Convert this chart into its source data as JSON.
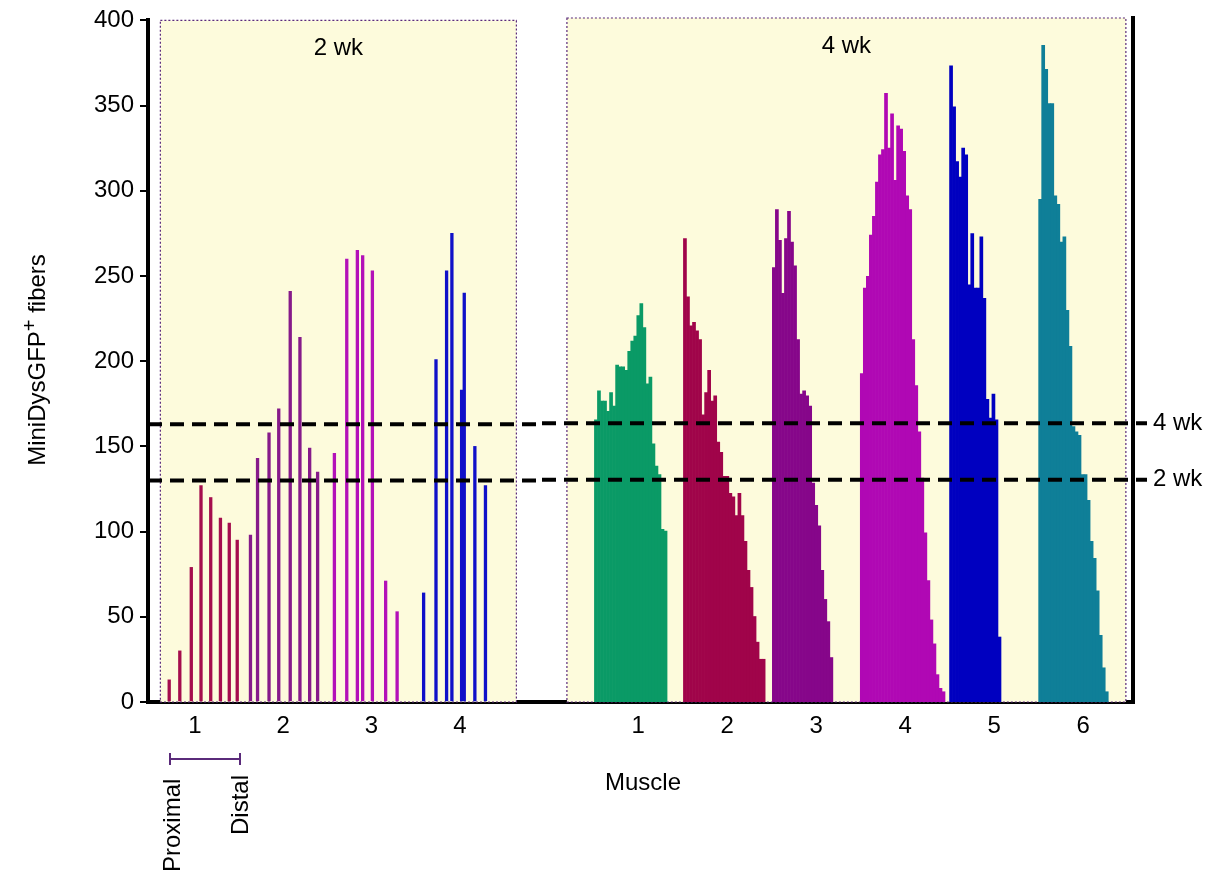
{
  "chart_data": [
    {
      "type": "bar",
      "ylabel": "MiniDysGFP$^{+}$ fibers",
      "xlim": [
        0.47,
        4.93
      ],
      "xticks": [
        1,
        2,
        3,
        4
      ],
      "ylim": [
        0,
        400
      ],
      "yticks": [
        0,
        50,
        100,
        150,
        200,
        250,
        300,
        350,
        400
      ],
      "grid": false,
      "legend": false,
      "bands": [
        {
          "axis": "x",
          "from": 0.61,
          "to": 4.64,
          "label": "2 wk",
          "color": "#fdfbdc"
        }
      ],
      "ref_lines": [
        {
          "axis": "y",
          "value": 163,
          "line_style": "dashed"
        },
        {
          "axis": "y",
          "value": 130,
          "line_style": "dashed"
        }
      ],
      "annotations": [
        "Proximal",
        "Distal"
      ],
      "series": [
        {
          "color": "#a50d4d",
          "x": [
            0.71,
            0.83,
            0.96,
            1.07,
            1.18,
            1.29,
            1.39,
            1.48
          ],
          "values": [
            13,
            30,
            79,
            127,
            120,
            108,
            105,
            95
          ]
        },
        {
          "color": "#861a8a",
          "x": [
            1.63,
            1.71,
            1.84,
            1.95,
            2.08,
            2.19,
            2.3,
            2.39
          ],
          "values": [
            98,
            143,
            158,
            172,
            241,
            214,
            149,
            135
          ]
        },
        {
          "color": "#b311b8",
          "x": [
            2.58,
            2.72,
            2.84,
            2.9,
            3.01,
            3.16,
            3.29
          ],
          "values": [
            146,
            260,
            265,
            262,
            253,
            71,
            53
          ]
        },
        {
          "color": "#1010c8",
          "x": [
            3.59,
            3.73,
            3.85,
            3.91,
            4.02,
            4.05,
            4.17,
            4.29
          ],
          "values": [
            64,
            201,
            253,
            275,
            183,
            240,
            150,
            127
          ]
        }
      ]
    },
    {
      "type": "bar",
      "xlabel": "Muscle",
      "xlim": [
        -0.08,
        6.56
      ],
      "xticks": [
        1,
        2,
        3,
        4,
        5,
        6
      ],
      "ylim": [
        0,
        400
      ],
      "yticks": [
        0,
        50,
        100,
        150,
        200,
        250,
        300,
        350,
        400
      ],
      "tick_labels": "x",
      "grid": false,
      "legend": false,
      "bands": [
        {
          "axis": "x",
          "from": 0.2,
          "to": 6.48,
          "label": "4 wk",
          "color": "#fdfbdc"
        }
      ],
      "ref_lines": [
        {
          "axis": "y",
          "value": 163,
          "label": "4 wk",
          "line_style": "dashed"
        },
        {
          "axis": "y",
          "value": 130,
          "label": "2 wk",
          "line_style": "dashed"
        }
      ],
      "series": [
        {
          "color": "#0a9a66",
          "x": [
            0.526,
            0.56,
            0.594,
            0.628,
            0.662,
            0.696,
            0.73,
            0.764,
            0.798,
            0.832,
            0.866,
            0.9,
            0.934,
            0.968,
            1.002,
            1.036,
            1.07,
            1.104,
            1.138,
            1.172,
            1.206,
            1.24,
            1.274,
            1.308
          ],
          "values": [
            165,
            182,
            176,
            176,
            170,
            181,
            173,
            197,
            196,
            196,
            194,
            205,
            211,
            214,
            226,
            233,
            219,
            186,
            190,
            151,
            138,
            133,
            101,
            100
          ]
        },
        {
          "color": "#a0044a",
          "x": [
            1.526,
            1.56,
            1.594,
            1.628,
            1.662,
            1.696,
            1.73,
            1.764,
            1.798,
            1.832,
            1.866,
            1.9,
            1.934,
            1.968,
            2.002,
            2.036,
            2.07,
            2.104,
            2.138,
            2.172,
            2.206,
            2.24,
            2.274,
            2.308,
            2.342,
            2.376,
            2.41
          ],
          "values": [
            271,
            237,
            220,
            222,
            217,
            212,
            168,
            181,
            194,
            176,
            179,
            152,
            146,
            132,
            132,
            122,
            120,
            109,
            122,
            109,
            94,
            77,
            67,
            50,
            35,
            25,
            25
          ]
        },
        {
          "color": "#86068a",
          "x": [
            2.525,
            2.559,
            2.593,
            2.627,
            2.661,
            2.695,
            2.729,
            2.763,
            2.797,
            2.831,
            2.865,
            2.899,
            2.933,
            2.967,
            3.001,
            3.035,
            3.069,
            3.103,
            3.137,
            3.171
          ],
          "values": [
            254,
            288,
            270,
            239,
            271,
            287,
            269,
            255,
            212,
            180,
            182,
            179,
            173,
            128,
            115,
            103,
            77,
            60,
            47,
            26
          ]
        },
        {
          "color": "#b008b4",
          "x": [
            3.513,
            3.547,
            3.581,
            3.615,
            3.649,
            3.683,
            3.717,
            3.751,
            3.785,
            3.819,
            3.853,
            3.887,
            3.921,
            3.955,
            3.989,
            4.023,
            4.057,
            4.091,
            4.125,
            4.159,
            4.193,
            4.227,
            4.261,
            4.295,
            4.329,
            4.363,
            4.397,
            4.431
          ],
          "values": [
            192,
            242,
            249,
            273,
            284,
            304,
            320,
            323,
            356,
            324,
            344,
            305,
            337,
            335,
            322,
            296,
            288,
            212,
            185,
            158,
            131,
            99,
            71,
            48,
            34,
            16,
            8,
            6
          ]
        },
        {
          "color": "#0000c0",
          "x": [
            4.516,
            4.55,
            4.584,
            4.618,
            4.652,
            4.686,
            4.72,
            4.754,
            4.788,
            4.822,
            4.856,
            4.89,
            4.924,
            4.958,
            4.992,
            5.026,
            5.06
          ],
          "values": [
            372,
            348,
            316,
            307,
            324,
            320,
            244,
            274,
            242,
            242,
            272,
            236,
            177,
            166,
            180,
            165,
            38
          ]
        },
        {
          "color": "#0f7f98",
          "x": [
            5.517,
            5.551,
            5.585,
            5.619,
            5.653,
            5.687,
            5.721,
            5.755,
            5.789,
            5.823,
            5.857,
            5.891,
            5.925,
            5.959,
            5.993,
            6.027,
            6.061,
            6.095,
            6.129,
            6.163,
            6.197,
            6.231,
            6.265
          ],
          "values": [
            294,
            384,
            370,
            350,
            350,
            296,
            291,
            269,
            272,
            229,
            208,
            161,
            158,
            156,
            133,
            133,
            118,
            94,
            84,
            65,
            39,
            20,
            6
          ]
        }
      ]
    }
  ]
}
